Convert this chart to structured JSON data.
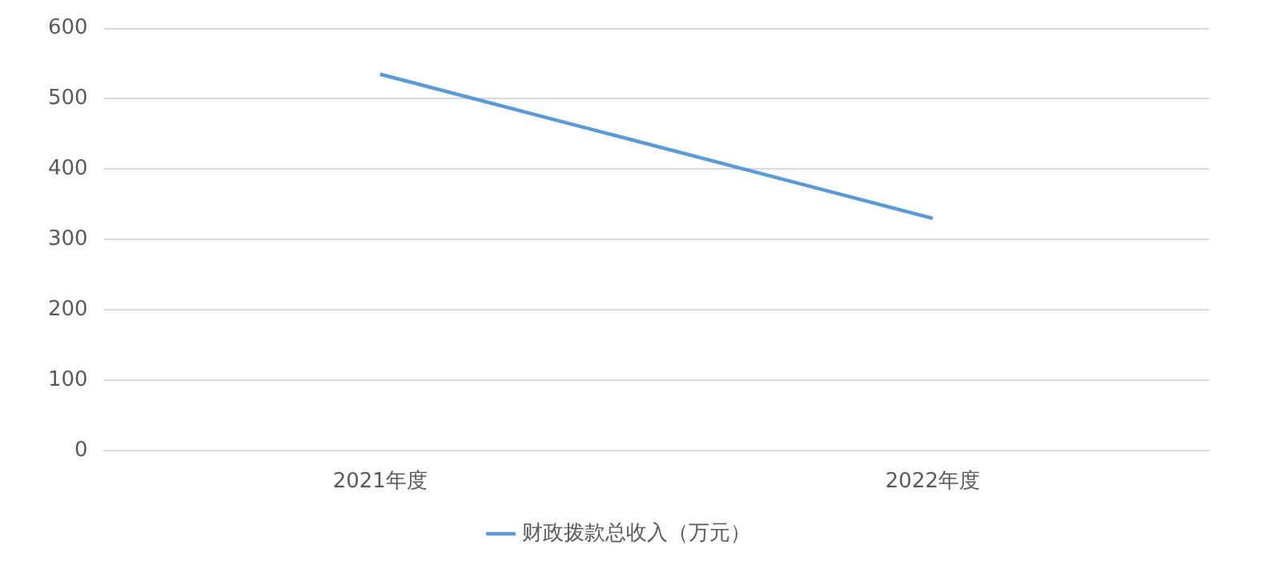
{
  "chart_data": {
    "type": "line",
    "categories": [
      "2021年度",
      "2022年度"
    ],
    "series": [
      {
        "name": "财政拨款总收入（万元）",
        "color": "#5b9bd5",
        "values": [
          535,
          330
        ]
      }
    ],
    "ylim": [
      0,
      600
    ],
    "yticks": [
      0,
      100,
      200,
      300,
      400,
      500,
      600
    ],
    "grid": "y",
    "legend": "bottom",
    "marker": "none",
    "line_style": "solid"
  }
}
